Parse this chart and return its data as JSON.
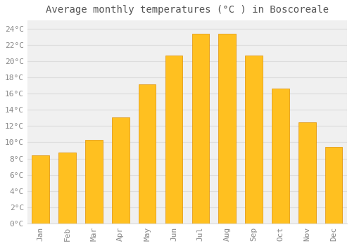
{
  "title": "Average monthly temperatures (°C ) in Boscoreale",
  "months": [
    "Jan",
    "Feb",
    "Mar",
    "Apr",
    "May",
    "Jun",
    "Jul",
    "Aug",
    "Sep",
    "Oct",
    "Nov",
    "Dec"
  ],
  "values": [
    8.4,
    8.7,
    10.3,
    13.1,
    17.1,
    20.7,
    23.4,
    23.4,
    20.7,
    16.6,
    12.5,
    9.4
  ],
  "bar_color_top": "#FFC020",
  "bar_color_bottom": "#F5A800",
  "bar_edge_color": "#E09000",
  "background_color": "#FFFFFF",
  "plot_bg_color": "#F0F0F0",
  "grid_color": "#DDDDDD",
  "text_color": "#888888",
  "title_color": "#555555",
  "ylim": [
    0,
    25
  ],
  "yticks": [
    0,
    2,
    4,
    6,
    8,
    10,
    12,
    14,
    16,
    18,
    20,
    22,
    24
  ],
  "title_fontsize": 10,
  "tick_fontsize": 8,
  "font_family": "monospace"
}
